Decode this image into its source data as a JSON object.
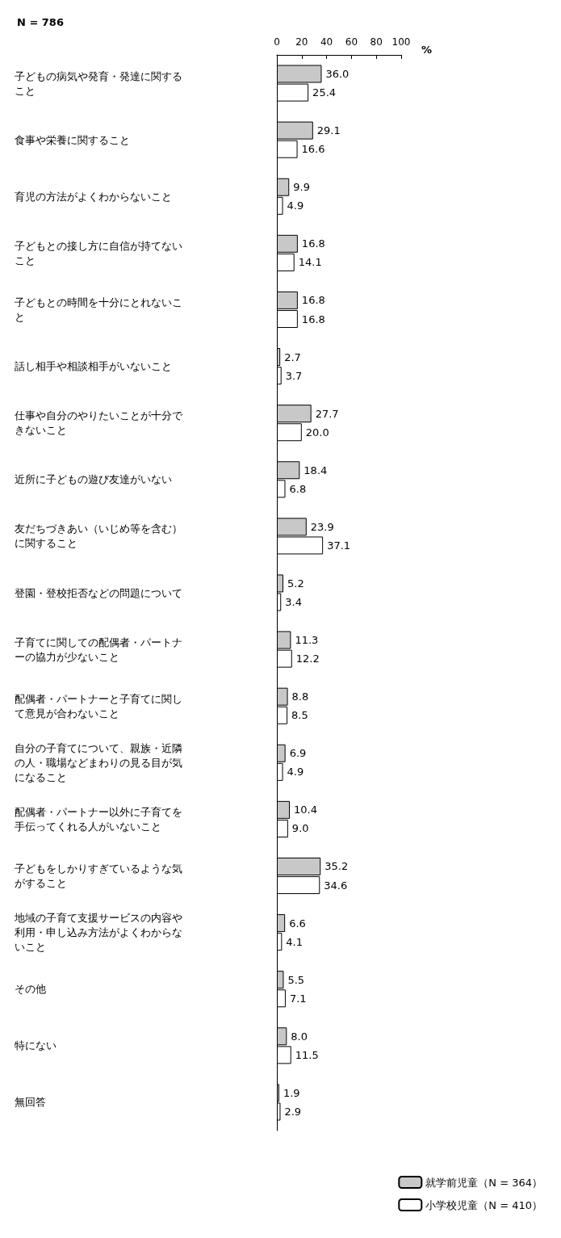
{
  "chart_data": {
    "type": "bar",
    "orientation": "horizontal",
    "subtitle": "N = 786",
    "x2label": "%",
    "categories": [
      "子どもの病気や発育・発達に関すること",
      "食事や栄養に関すること",
      "育児の方法がよくわからないこと",
      "子どもとの接し方に自信が持てないこと",
      "子どもとの時間を十分にとれないこと",
      "話し相手や相談相手がいないこと",
      "仕事や自分のやりたいことが十分できないこと",
      "近所に子どもの遊び友達がいない",
      "友だちづきあい（いじめ等を含む）に関すること",
      "登園・登校拒否などの問題について",
      "子育てに関しての配偶者・パートナーの協力が少ないこと",
      "配偶者・パートナーと子育てに関して意見が合わないこと",
      "自分の子育てについて、親族・近隣の人・職場などまわりの見る目が気になること",
      "配偶者・パートナー以外に子育てを手伝ってくれる人がいないこと",
      "子どもをしかりすぎているような気がすること",
      "地域の子育て支援サービスの内容や利用・申し込み方法がよくわからないこと",
      "その他",
      "特にない",
      "無回答"
    ],
    "series": [
      {
        "name": "就学前児童（N = 364）",
        "color": "#c8c8c8",
        "values": [
          36.0,
          29.1,
          9.9,
          16.8,
          16.8,
          2.7,
          27.7,
          18.4,
          23.9,
          5.2,
          11.3,
          8.8,
          6.9,
          10.4,
          35.2,
          6.6,
          5.5,
          8.0,
          1.9
        ],
        "value_labels": [
          "36.0",
          "29.1",
          "9.9",
          "16.8",
          "16.8",
          "2.7",
          "27.7",
          "18.4",
          "23.9",
          "5.2",
          "11.3",
          "8.8",
          "6.9",
          "10.4",
          "35.2",
          "6.6",
          "5.5",
          "8.0",
          "1.9"
        ]
      },
      {
        "name": "小学校児童（N = 410）",
        "color": "#ffffff",
        "values": [
          25.4,
          16.6,
          4.9,
          14.1,
          16.8,
          3.7,
          20.0,
          6.8,
          37.1,
          3.4,
          12.2,
          8.5,
          4.9,
          9.0,
          34.6,
          4.1,
          7.1,
          11.5,
          2.9
        ],
        "value_labels": [
          "25.4",
          "16.6",
          "4.9",
          "14.1",
          "16.8",
          "3.7",
          "20.0",
          "6.8",
          "37.1",
          "3.4",
          "12.2",
          "8.5",
          "4.9",
          "9.0",
          "34.6",
          "4.1",
          "7.1",
          "11.5",
          "2.9"
        ]
      }
    ],
    "x2lim": [
      0,
      100
    ],
    "x2ticks": [
      0,
      20,
      40,
      60,
      80,
      100
    ],
    "grid": false,
    "legend": "bottom right"
  }
}
